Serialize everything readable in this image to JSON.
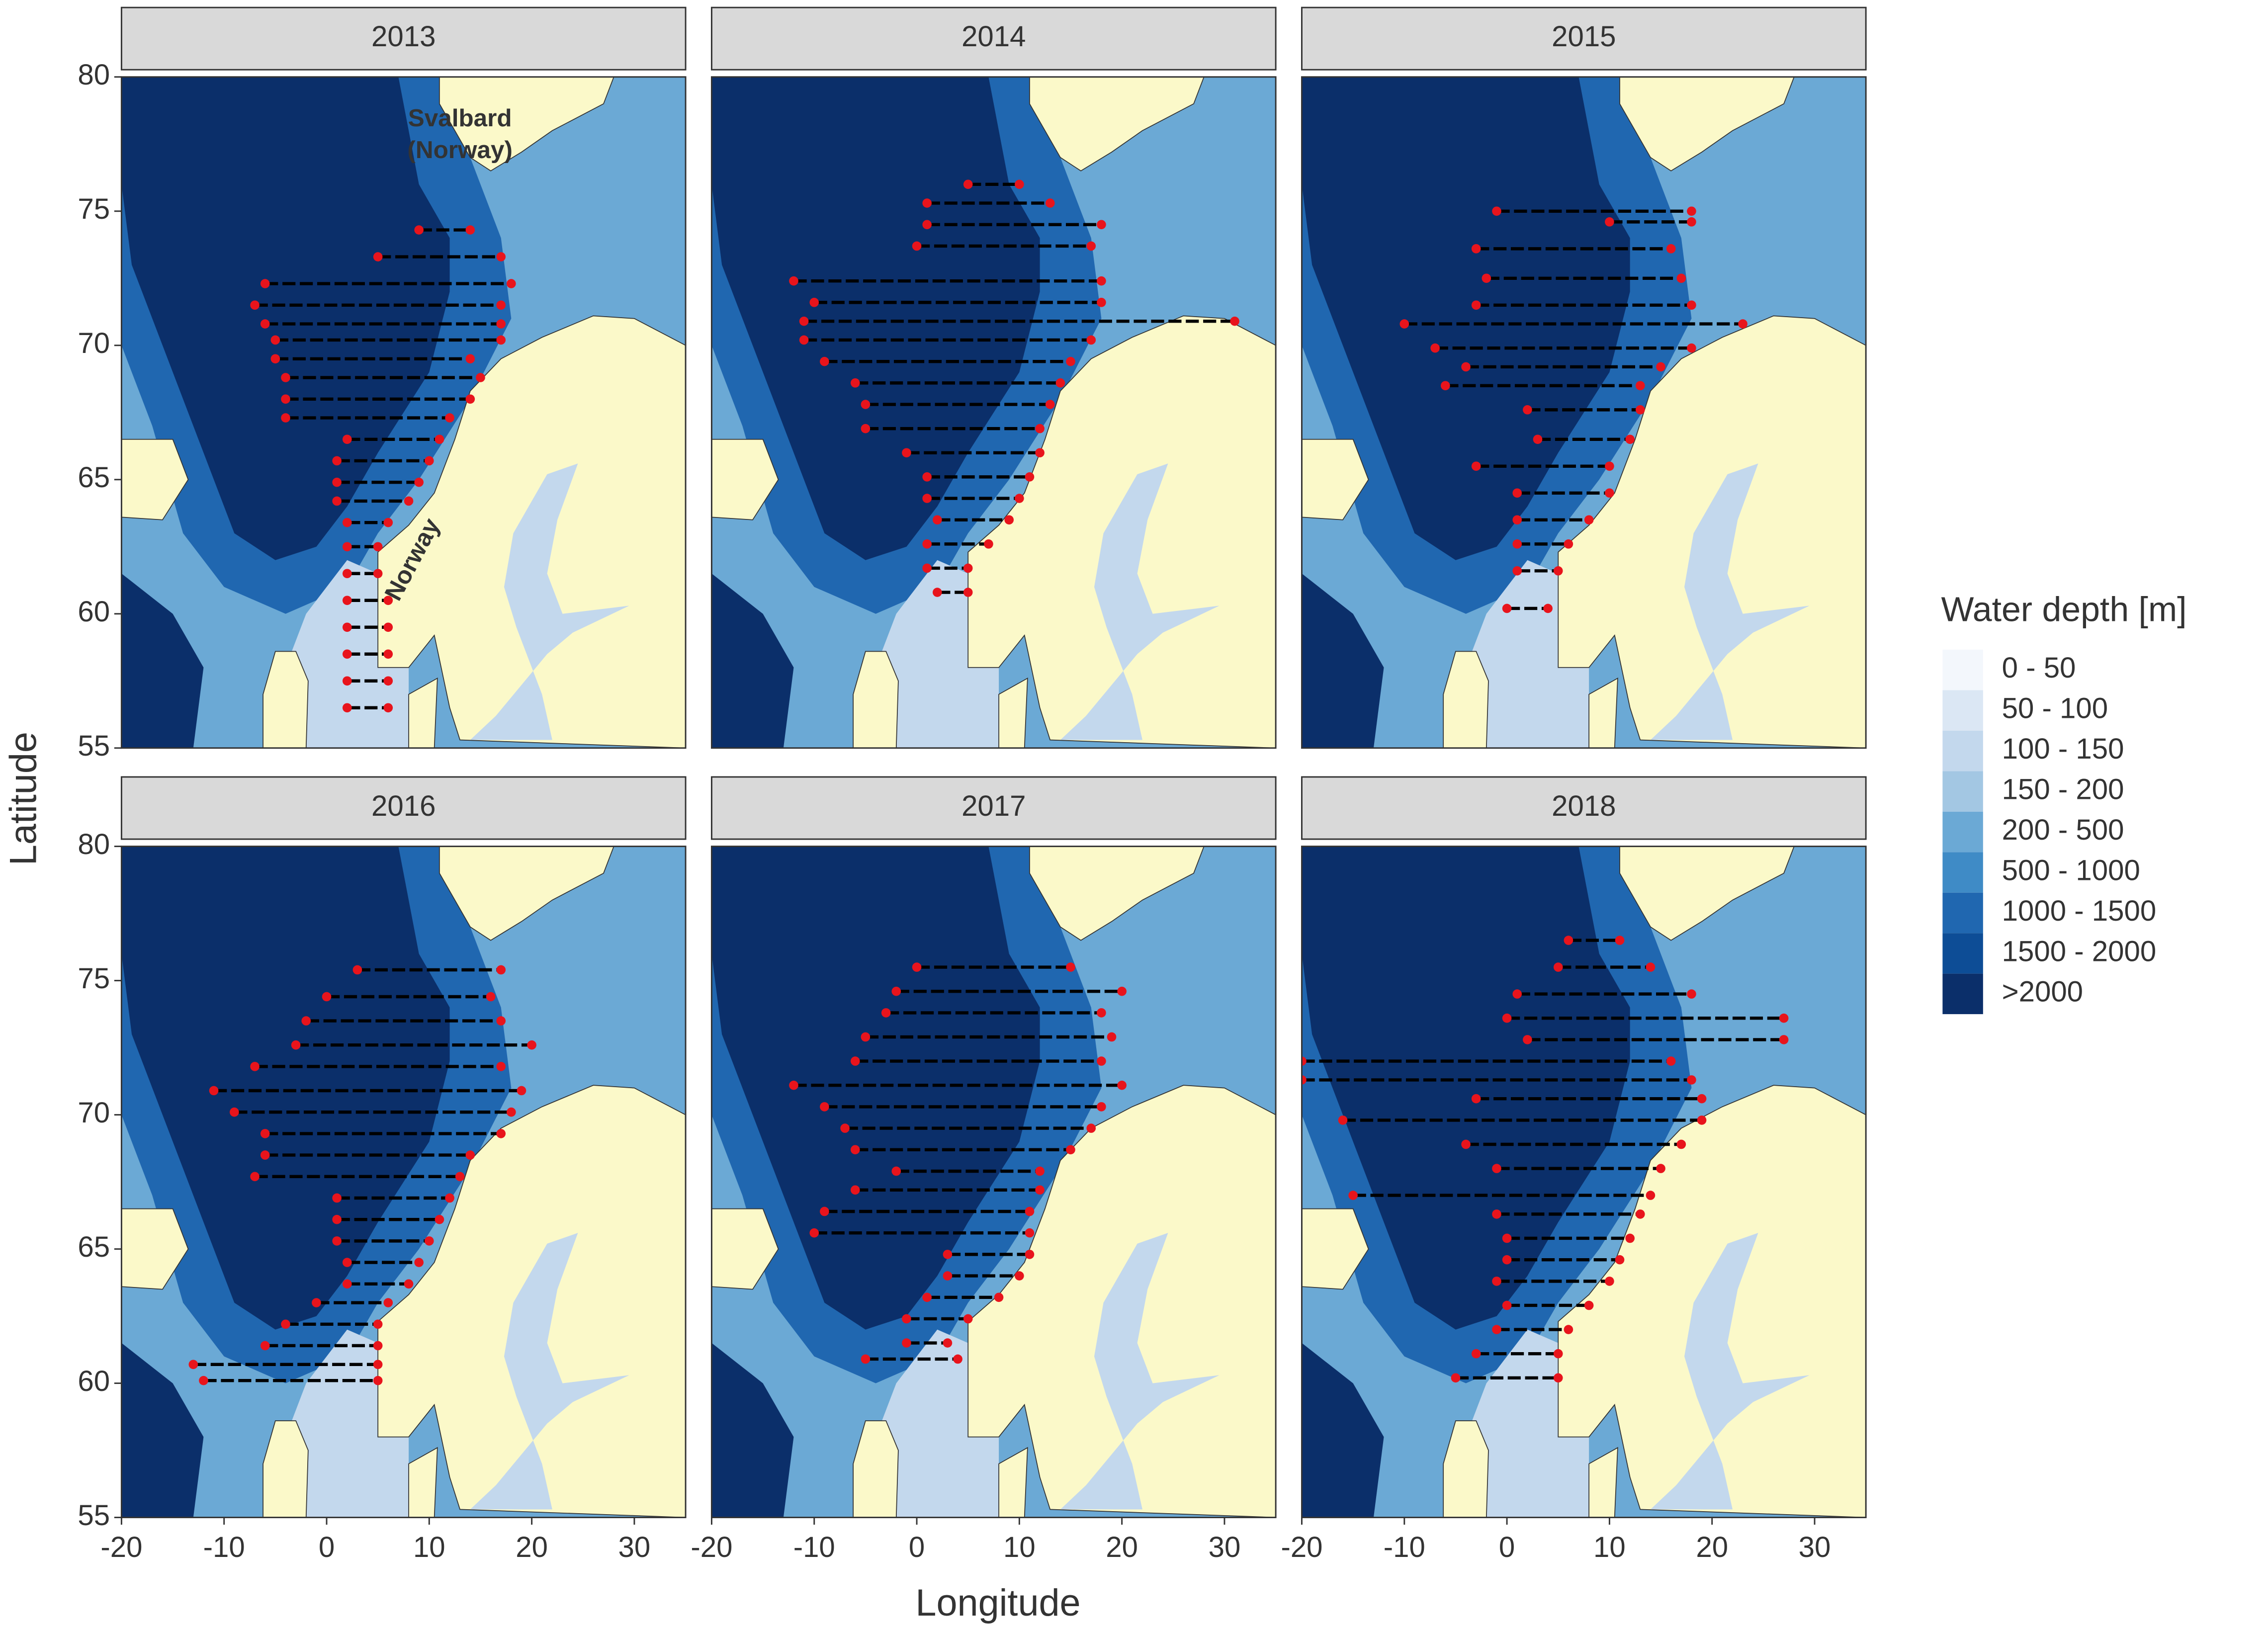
{
  "chart_data": {
    "type": "map",
    "xlabel": "Longitude",
    "ylabel": "Latitude",
    "xlim": [
      -20,
      35
    ],
    "ylim": [
      55,
      80
    ],
    "xticks": [
      -20,
      -10,
      0,
      10,
      20,
      30
    ],
    "yticks": [
      55,
      60,
      65,
      70,
      75,
      80
    ],
    "annotations": [
      "Svalbard\n(Norway)",
      "Norway"
    ],
    "legend": {
      "title": "Water depth [m]",
      "items": [
        {
          "label": "0 - 50",
          "color": "#f3f7fc"
        },
        {
          "label": "50 - 100",
          "color": "#dbe7f4"
        },
        {
          "label": "100 - 150",
          "color": "#c3d8ed"
        },
        {
          "label": "150 - 200",
          "color": "#a3c7e3"
        },
        {
          "label": "200 - 500",
          "color": "#6ba9d5"
        },
        {
          "label": "500 - 1000",
          "color": "#3f8bc6"
        },
        {
          "label": "1000 - 1500",
          "color": "#2067b0"
        },
        {
          "label": "1500 - 2000",
          "color": "#0d4d96"
        },
        {
          "label": ">2000",
          "color": "#0b2f6a"
        }
      ]
    },
    "panels": [
      {
        "title": "2013",
        "transects": [
          [
            74.3,
            9,
            14
          ],
          [
            73.3,
            5,
            17
          ],
          [
            72.3,
            -6,
            18
          ],
          [
            71.5,
            -7,
            17
          ],
          [
            70.8,
            -6,
            17
          ],
          [
            70.2,
            -5,
            17
          ],
          [
            69.5,
            -5,
            14
          ],
          [
            68.8,
            -4,
            15
          ],
          [
            68,
            -4,
            14
          ],
          [
            67.3,
            -4,
            12
          ],
          [
            66.5,
            2,
            11
          ],
          [
            65.7,
            1,
            10
          ],
          [
            64.9,
            1,
            9
          ],
          [
            64.2,
            1,
            8
          ],
          [
            63.4,
            2,
            6
          ],
          [
            62.5,
            2,
            5
          ],
          [
            61.5,
            2,
            5
          ],
          [
            60.5,
            2,
            6
          ],
          [
            59.5,
            2,
            6
          ],
          [
            58.5,
            2,
            6
          ],
          [
            57.5,
            2,
            6
          ],
          [
            56.5,
            2,
            6
          ]
        ]
      },
      {
        "title": "2014",
        "transects": [
          [
            76,
            5,
            10
          ],
          [
            75.3,
            1,
            13
          ],
          [
            74.5,
            1,
            18
          ],
          [
            73.7,
            0,
            17
          ],
          [
            72.4,
            -12,
            18
          ],
          [
            71.6,
            -10,
            18
          ],
          [
            70.9,
            -11,
            31
          ],
          [
            70.2,
            -11,
            17
          ],
          [
            69.4,
            -9,
            15
          ],
          [
            68.6,
            -6,
            14
          ],
          [
            67.8,
            -5,
            13
          ],
          [
            66.9,
            -5,
            12
          ],
          [
            66,
            -1,
            12
          ],
          [
            65.1,
            1,
            11
          ],
          [
            64.3,
            1,
            10
          ],
          [
            63.5,
            2,
            9
          ],
          [
            62.6,
            1,
            7
          ],
          [
            61.7,
            1,
            5
          ],
          [
            60.8,
            2,
            5
          ]
        ]
      },
      {
        "title": "2015",
        "transects": [
          [
            75,
            -1,
            18
          ],
          [
            74.6,
            10,
            18
          ],
          [
            73.6,
            -3,
            16
          ],
          [
            72.5,
            -2,
            17
          ],
          [
            71.5,
            -3,
            18
          ],
          [
            70.8,
            -10,
            23
          ],
          [
            69.9,
            -7,
            18
          ],
          [
            69.2,
            -4,
            15
          ],
          [
            68.5,
            -6,
            13
          ],
          [
            67.6,
            2,
            13
          ],
          [
            66.5,
            3,
            12
          ],
          [
            65.5,
            -3,
            10
          ],
          [
            64.5,
            1,
            10
          ],
          [
            63.5,
            1,
            8
          ],
          [
            62.6,
            1,
            6
          ],
          [
            61.6,
            1,
            5
          ],
          [
            60.2,
            0,
            4
          ]
        ]
      },
      {
        "title": "2016",
        "transects": [
          [
            75.4,
            3,
            17
          ],
          [
            74.4,
            0,
            16
          ],
          [
            73.5,
            -2,
            17
          ],
          [
            72.6,
            -3,
            20
          ],
          [
            71.8,
            -7,
            17
          ],
          [
            70.9,
            -11,
            19
          ],
          [
            70.1,
            -9,
            18
          ],
          [
            69.3,
            -6,
            17
          ],
          [
            68.5,
            -6,
            14
          ],
          [
            67.7,
            -7,
            13
          ],
          [
            66.9,
            1,
            12
          ],
          [
            66.1,
            1,
            11
          ],
          [
            65.3,
            1,
            10
          ],
          [
            64.5,
            2,
            9
          ],
          [
            63.7,
            2,
            8
          ],
          [
            63,
            -1,
            6
          ],
          [
            62.2,
            -4,
            5
          ],
          [
            61.4,
            -6,
            5
          ],
          [
            60.7,
            -13,
            5
          ],
          [
            60.1,
            -12,
            5
          ]
        ]
      },
      {
        "title": "2017",
        "transects": [
          [
            75.5,
            0,
            15
          ],
          [
            74.6,
            -2,
            20
          ],
          [
            73.8,
            -3,
            18
          ],
          [
            72.9,
            -5,
            19
          ],
          [
            72,
            -6,
            18
          ],
          [
            71.1,
            -12,
            20
          ],
          [
            70.3,
            -9,
            18
          ],
          [
            69.5,
            -7,
            17
          ],
          [
            68.7,
            -6,
            15
          ],
          [
            67.9,
            -2,
            12
          ],
          [
            67.2,
            -6,
            12
          ],
          [
            66.4,
            -9,
            11
          ],
          [
            65.6,
            -10,
            11
          ],
          [
            64.8,
            3,
            11
          ],
          [
            64,
            3,
            10
          ],
          [
            63.2,
            1,
            8
          ],
          [
            62.4,
            -1,
            5
          ],
          [
            61.5,
            -1,
            3
          ],
          [
            60.9,
            -5,
            4
          ]
        ]
      },
      {
        "title": "2018",
        "transects": [
          [
            76.5,
            6,
            11
          ],
          [
            75.5,
            5,
            14
          ],
          [
            74.5,
            1,
            18
          ],
          [
            73.6,
            0,
            27
          ],
          [
            72.8,
            2,
            27
          ],
          [
            72,
            -20,
            16
          ],
          [
            71.3,
            -20,
            18
          ],
          [
            70.6,
            -3,
            19
          ],
          [
            69.8,
            -16,
            19
          ],
          [
            68.9,
            -4,
            17
          ],
          [
            68,
            -1,
            15
          ],
          [
            67,
            -15,
            14
          ],
          [
            66.3,
            -1,
            13
          ],
          [
            65.4,
            0,
            12
          ],
          [
            64.6,
            0,
            11
          ],
          [
            63.8,
            -1,
            10
          ],
          [
            62.9,
            0,
            8
          ],
          [
            62,
            -1,
            6
          ],
          [
            61.1,
            -3,
            5
          ],
          [
            60.2,
            -5,
            5
          ]
        ]
      }
    ]
  }
}
